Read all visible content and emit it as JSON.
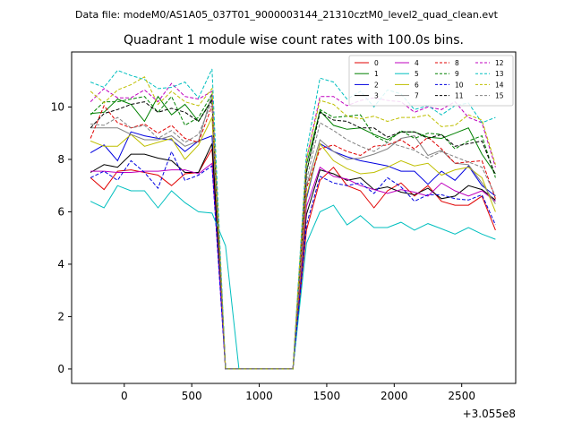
{
  "header": {
    "file_label": "Data file: modeM0/AS1A05_037T01_9000003144_21310cztM0_level2_quad_clean.evt"
  },
  "chart_data": {
    "type": "line",
    "title": "Quadrant 1 module wise count rates with 100.0s bins.",
    "xlabel": "",
    "ylabel": "",
    "x_offset_label": "+3.055e8",
    "xlim": [
      -390,
      2900
    ],
    "ylim": [
      -0.55,
      12.1
    ],
    "xticks": [
      0,
      500,
      1000,
      1500,
      2000,
      2500
    ],
    "yticks": [
      0,
      2,
      4,
      6,
      8,
      10
    ],
    "grid": false,
    "legend_position": "top-right",
    "legend_columns": 4,
    "x": [
      -250,
      -150,
      -50,
      50,
      150,
      250,
      350,
      450,
      550,
      650,
      750,
      850,
      950,
      1050,
      1150,
      1250,
      1350,
      1450,
      1550,
      1650,
      1750,
      1850,
      1950,
      2050,
      2150,
      2250,
      2350,
      2450,
      2550,
      2650,
      2750
    ],
    "series": [
      {
        "name": "0",
        "color": "#e00000",
        "dash": "solid",
        "values": [
          7.3,
          6.85,
          7.55,
          7.6,
          7.5,
          7.4,
          7.0,
          7.45,
          7.5,
          8.4,
          0.0,
          0.0,
          0.0,
          0.0,
          0.0,
          0.0,
          5.3,
          7.2,
          7.7,
          7.0,
          6.8,
          6.15,
          6.8,
          7.1,
          6.6,
          7.0,
          6.4,
          6.25,
          6.25,
          6.6,
          5.3
        ]
      },
      {
        "name": "1",
        "color": "#008000",
        "dash": "solid",
        "values": [
          9.75,
          9.8,
          10.3,
          10.1,
          9.45,
          10.4,
          9.7,
          10.1,
          9.45,
          10.3,
          0.0,
          0.0,
          0.0,
          0.0,
          0.0,
          0.0,
          7.8,
          9.85,
          9.3,
          9.15,
          9.2,
          8.95,
          8.75,
          9.05,
          9.05,
          8.85,
          8.8,
          9.0,
          9.2,
          8.2,
          7.45
        ]
      },
      {
        "name": "2",
        "color": "#0000e0",
        "dash": "solid",
        "values": [
          8.25,
          8.55,
          7.95,
          9.05,
          8.9,
          8.8,
          8.75,
          8.3,
          8.7,
          8.9,
          0.0,
          0.0,
          0.0,
          0.0,
          0.0,
          0.0,
          6.5,
          8.6,
          8.3,
          8.1,
          7.95,
          7.85,
          7.75,
          7.55,
          7.55,
          7.05,
          7.55,
          7.2,
          7.75,
          7.0,
          6.6
        ]
      },
      {
        "name": "3",
        "color": "#000000",
        "dash": "solid",
        "values": [
          7.5,
          7.8,
          7.7,
          8.2,
          8.2,
          8.05,
          7.95,
          7.5,
          7.5,
          8.6,
          0.0,
          0.0,
          0.0,
          0.0,
          0.0,
          0.0,
          5.9,
          7.6,
          7.45,
          7.2,
          7.3,
          6.85,
          6.95,
          6.75,
          6.65,
          6.9,
          6.5,
          6.6,
          7.0,
          6.85,
          6.45
        ]
      },
      {
        "name": "4",
        "color": "#bf00bf",
        "dash": "solid",
        "values": [
          7.55,
          7.55,
          7.5,
          7.5,
          7.55,
          7.55,
          7.6,
          7.6,
          7.45,
          7.85,
          0.0,
          0.0,
          0.0,
          0.0,
          0.0,
          0.0,
          6.2,
          7.7,
          7.35,
          7.25,
          7.0,
          6.85,
          6.7,
          6.85,
          6.75,
          6.6,
          7.1,
          6.8,
          6.6,
          6.8,
          6.4
        ]
      },
      {
        "name": "5",
        "color": "#00bfbf",
        "dash": "solid",
        "values": [
          6.4,
          6.15,
          7.0,
          6.8,
          6.8,
          6.15,
          6.8,
          6.35,
          6.0,
          5.95,
          4.7,
          0.0,
          0.0,
          0.0,
          0.0,
          0.0,
          4.8,
          6.0,
          6.25,
          5.5,
          5.85,
          5.4,
          5.4,
          5.6,
          5.3,
          5.55,
          5.35,
          5.15,
          5.4,
          5.15,
          4.95
        ]
      },
      {
        "name": "6",
        "color": "#bfbf00",
        "dash": "solid",
        "values": [
          8.7,
          8.5,
          8.5,
          8.95,
          8.5,
          8.65,
          8.8,
          8.0,
          8.55,
          9.6,
          0.0,
          0.0,
          0.0,
          0.0,
          0.0,
          0.0,
          6.6,
          8.6,
          7.95,
          7.65,
          7.45,
          7.5,
          7.7,
          7.95,
          7.75,
          7.85,
          7.4,
          7.6,
          7.7,
          7.3,
          6.0
        ]
      },
      {
        "name": "7",
        "color": "#808080",
        "dash": "solid",
        "values": [
          9.2,
          9.2,
          9.2,
          8.95,
          8.75,
          8.75,
          8.9,
          8.5,
          8.7,
          10.5,
          0.0,
          0.0,
          0.0,
          0.0,
          0.0,
          0.0,
          7.0,
          8.75,
          8.3,
          8.0,
          8.05,
          8.2,
          8.4,
          8.8,
          8.9,
          8.15,
          8.35,
          7.85,
          7.8,
          7.1,
          6.3
        ]
      },
      {
        "name": "8",
        "color": "#e00000",
        "dash": "dashed",
        "values": [
          8.8,
          10.05,
          9.4,
          9.2,
          9.35,
          9.0,
          9.3,
          8.8,
          8.65,
          10.05,
          0.0,
          0.0,
          0.0,
          0.0,
          0.0,
          0.0,
          6.9,
          8.4,
          8.55,
          8.3,
          8.15,
          8.5,
          8.55,
          8.75,
          8.4,
          8.85,
          8.4,
          7.85,
          7.9,
          7.95,
          6.5
        ]
      },
      {
        "name": "9",
        "color": "#008000",
        "dash": "dashed",
        "values": [
          9.7,
          10.2,
          10.2,
          10.3,
          10.4,
          9.8,
          10.4,
          9.3,
          9.6,
          10.5,
          0.0,
          0.0,
          0.0,
          0.0,
          0.0,
          0.0,
          7.5,
          9.9,
          9.6,
          9.65,
          9.7,
          8.9,
          8.65,
          9.1,
          8.8,
          9.0,
          8.95,
          8.4,
          8.7,
          8.9,
          7.3
        ]
      },
      {
        "name": "10",
        "color": "#0000e0",
        "dash": "dashed",
        "values": [
          7.3,
          7.55,
          7.2,
          7.95,
          7.5,
          6.9,
          8.3,
          7.2,
          7.4,
          7.75,
          0.0,
          0.0,
          0.0,
          0.0,
          0.0,
          0.0,
          5.5,
          7.35,
          7.1,
          7.0,
          7.1,
          6.7,
          7.3,
          6.95,
          6.4,
          6.65,
          6.65,
          6.5,
          6.45,
          6.65,
          5.5
        ]
      },
      {
        "name": "11",
        "color": "#000000",
        "dash": "dashed",
        "values": [
          9.2,
          9.75,
          9.9,
          10.1,
          10.2,
          9.8,
          9.95,
          9.8,
          9.45,
          10.25,
          0.0,
          0.0,
          0.0,
          0.0,
          0.0,
          0.0,
          7.5,
          9.8,
          9.5,
          9.45,
          9.2,
          9.2,
          8.85,
          9.05,
          9.05,
          8.8,
          8.95,
          8.5,
          8.6,
          8.7,
          7.4
        ]
      },
      {
        "name": "12",
        "color": "#bf00bf",
        "dash": "dashed",
        "values": [
          10.2,
          10.7,
          10.35,
          10.35,
          10.65,
          10.2,
          10.9,
          10.4,
          10.3,
          10.6,
          0.0,
          0.0,
          0.0,
          0.0,
          0.0,
          0.0,
          8.0,
          10.4,
          10.4,
          10.05,
          10.25,
          10.35,
          10.25,
          10.2,
          9.8,
          10.0,
          9.9,
          10.2,
          9.6,
          9.4,
          7.7
        ]
      },
      {
        "name": "13",
        "color": "#00bfbf",
        "dash": "dashed",
        "values": [
          10.95,
          10.75,
          11.4,
          11.2,
          11.05,
          10.7,
          10.75,
          10.95,
          10.35,
          11.45,
          0.0,
          0.0,
          0.0,
          0.0,
          0.0,
          0.0,
          8.3,
          11.1,
          10.95,
          10.3,
          10.6,
          10.0,
          10.65,
          10.5,
          9.9,
          10.05,
          9.7,
          10.05,
          10.15,
          9.4,
          9.6
        ]
      },
      {
        "name": "14",
        "color": "#bfbf00",
        "dash": "dashed",
        "values": [
          10.6,
          10.15,
          10.65,
          10.85,
          11.15,
          10.1,
          10.6,
          10.2,
          10.05,
          10.7,
          0.0,
          0.0,
          0.0,
          0.0,
          0.0,
          0.0,
          8.0,
          10.25,
          10.1,
          9.65,
          9.55,
          9.65,
          9.45,
          9.6,
          9.6,
          9.7,
          9.25,
          9.3,
          9.7,
          9.5,
          7.8
        ]
      },
      {
        "name": "15",
        "color": "#808080",
        "dash": "dashed",
        "values": [
          9.35,
          9.3,
          9.6,
          9.2,
          9.3,
          8.8,
          9.1,
          8.65,
          8.95,
          10.2,
          0.0,
          0.0,
          0.0,
          0.0,
          0.0,
          0.0,
          7.2,
          9.4,
          9.1,
          8.75,
          8.5,
          8.3,
          8.65,
          8.5,
          8.35,
          8.05,
          8.3,
          8.1,
          7.9,
          7.7,
          6.6
        ]
      }
    ]
  }
}
